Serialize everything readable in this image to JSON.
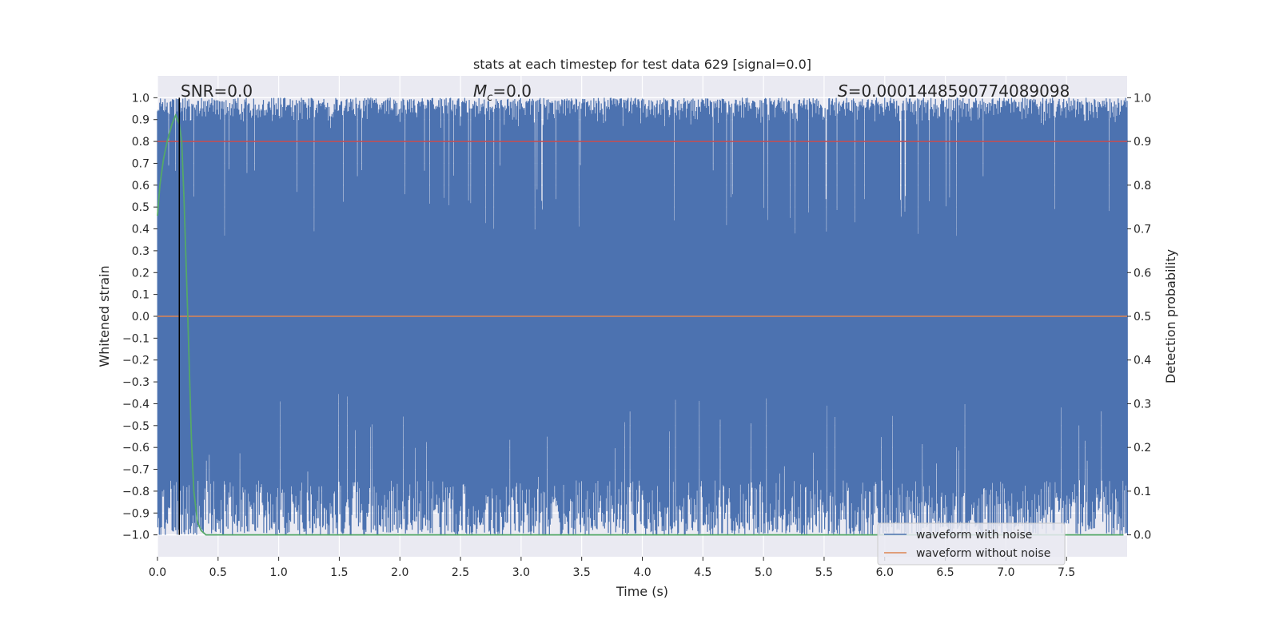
{
  "chart_data": {
    "type": "line",
    "title": "stats at each timestep for test data 629 [signal=0.0]",
    "xlabel": "Time (s)",
    "ylabel_left": "Whitened strain",
    "ylabel_right": "Detection probability",
    "xlim": [
      0.0,
      8.0
    ],
    "ylim_left": [
      -1.1,
      1.1
    ],
    "ylim_right": [
      -0.05,
      1.05
    ],
    "x_ticks": [
      0.0,
      0.5,
      1.0,
      1.5,
      2.0,
      2.5,
      3.0,
      3.5,
      4.0,
      4.5,
      5.0,
      5.5,
      6.0,
      6.5,
      7.0,
      7.5
    ],
    "x_tick_labels": [
      "0.0",
      "0.5",
      "1.0",
      "1.5",
      "2.0",
      "2.5",
      "3.0",
      "3.5",
      "4.0",
      "4.5",
      "5.0",
      "5.5",
      "6.0",
      "6.5",
      "7.0",
      "7.5"
    ],
    "y_left_ticks": [
      1.0,
      0.9,
      0.8,
      0.7,
      0.6,
      0.5,
      0.4,
      0.3,
      0.2,
      0.1,
      0.0,
      -0.1,
      -0.2,
      -0.3,
      -0.4,
      -0.5,
      -0.6,
      -0.7,
      -0.8,
      -0.9,
      -1.0
    ],
    "y_left_tick_labels": [
      "1.0",
      "0.9",
      "0.8",
      "0.7",
      "0.6",
      "0.5",
      "0.4",
      "0.3",
      "0.2",
      "0.1",
      "0.0",
      "−0.1",
      "−0.2",
      "−0.3",
      "−0.4",
      "−0.5",
      "−0.6",
      "−0.7",
      "−0.8",
      "−0.9",
      "−1.0"
    ],
    "y_right_ticks": [
      1.0,
      0.9,
      0.8,
      0.7,
      0.6,
      0.5,
      0.4,
      0.3,
      0.2,
      0.1,
      0.0
    ],
    "y_right_tick_labels": [
      "1.0",
      "0.9",
      "0.8",
      "0.7",
      "0.6",
      "0.5",
      "0.4",
      "0.3",
      "0.2",
      "0.1",
      "0.0"
    ],
    "annotations": {
      "snr": "SNR=0.0",
      "mc_symbol": "M",
      "mc_sub": "c",
      "mc_value": "=0.0",
      "s_symbol": "S",
      "s_value": "=0.0001448590774089098"
    },
    "legend": {
      "position": "lower-right",
      "entries": [
        {
          "label": "waveform with noise",
          "color": "#4c72b0"
        },
        {
          "label": "waveform without noise",
          "color": "#dd8452"
        }
      ]
    },
    "series": [
      {
        "name": "waveform with noise",
        "axis": "left",
        "color": "#4c72b0",
        "description": "whitened noise clipped to [-1, 1]; peaks typically 0.85-1.0, troughs typically -1.0 to -0.75",
        "x_range": [
          0.0,
          8.0
        ],
        "upper_typical": [
          0.85,
          1.0
        ],
        "lower_typical": [
          -1.0,
          -0.75
        ]
      },
      {
        "name": "waveform without noise",
        "axis": "left",
        "color": "#dd8452",
        "x": [
          0.0,
          8.0
        ],
        "y": [
          0.0,
          0.0
        ]
      },
      {
        "name": "detection threshold",
        "axis": "right",
        "color": "#c44e52",
        "x": [
          0.0,
          8.0
        ],
        "y": [
          0.9,
          0.9
        ]
      },
      {
        "name": "detection probability",
        "axis": "right",
        "color": "#55a868",
        "x": [
          0.0,
          0.02,
          0.05,
          0.08,
          0.12,
          0.15,
          0.18,
          0.2,
          0.22,
          0.25,
          0.28,
          0.3,
          0.33,
          0.36,
          0.4,
          1.0,
          2.0,
          3.0,
          4.0,
          5.0,
          6.0,
          7.0,
          7.97
        ],
        "y": [
          0.73,
          0.8,
          0.86,
          0.9,
          0.94,
          0.96,
          0.94,
          0.9,
          0.76,
          0.5,
          0.22,
          0.1,
          0.03,
          0.01,
          0.0,
          0.0,
          0.0,
          0.0,
          0.0,
          0.0,
          0.0,
          0.0,
          0.0
        ]
      },
      {
        "name": "trigger marker",
        "axis": "left",
        "color": "#000000",
        "type": "vline",
        "x": 0.18,
        "y": [
          -1.0,
          1.0
        ]
      }
    ]
  }
}
